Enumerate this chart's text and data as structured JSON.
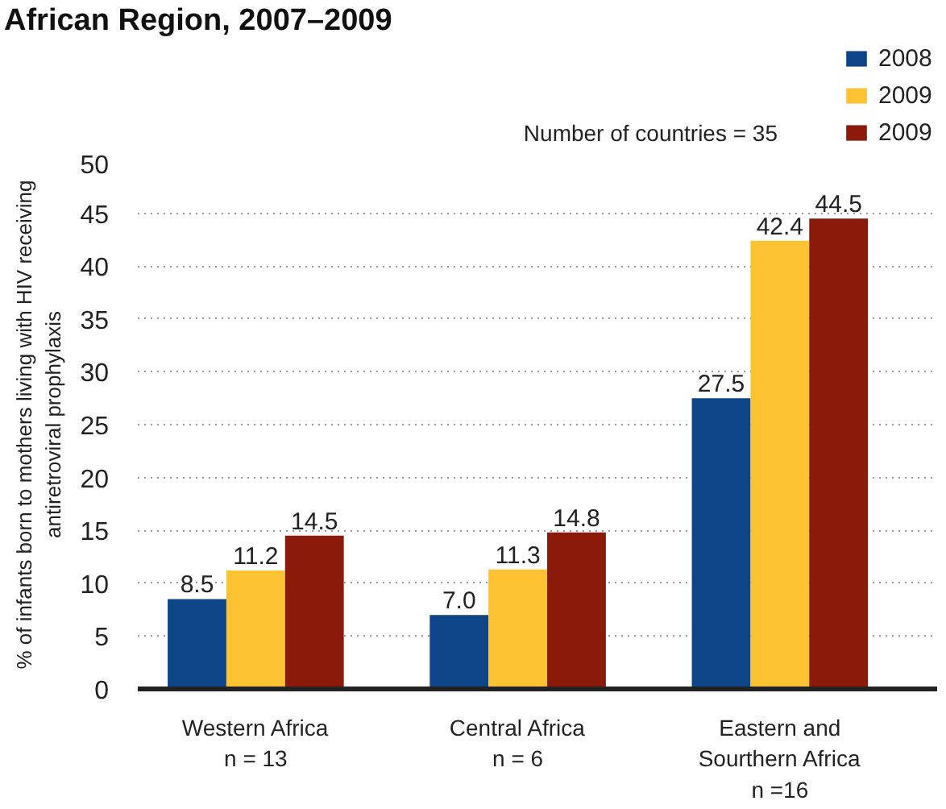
{
  "chart_data": {
    "type": "bar",
    "title": "African Region, 2007–2009",
    "ylabel": "% of infants born to mothers living with HIV receiving\nantiretroviral prophylaxis",
    "annotations": [
      "Number of countries = 35"
    ],
    "categories": [
      "Western Africa\nn = 13",
      "Central Africa\nn = 6",
      "Eastern and\nSourthern Africa\nn =16"
    ],
    "series": [
      {
        "name": "2008",
        "color": "#0e4488",
        "values": [
          8.5,
          7.0,
          27.5
        ],
        "value_labels": [
          "8.5",
          "7.0",
          "27.5"
        ]
      },
      {
        "name": "2009",
        "color": "#fdc232",
        "values": [
          11.2,
          11.3,
          42.4
        ],
        "value_labels": [
          "11.2",
          "11.3",
          "42.4"
        ]
      },
      {
        "name": "2009",
        "color": "#8b1a0a",
        "values": [
          14.5,
          14.8,
          44.5
        ],
        "value_labels": [
          "14.5",
          "14.8",
          "44.5"
        ]
      }
    ],
    "ylim": [
      0,
      50
    ],
    "yticks": [
      0,
      5,
      10,
      15,
      20,
      25,
      30,
      35,
      40,
      45,
      50
    ],
    "grid": "y",
    "legend": "top right"
  }
}
